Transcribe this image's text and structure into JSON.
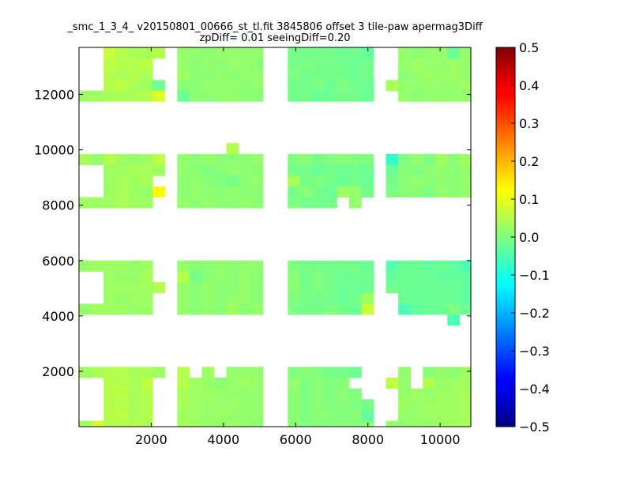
{
  "chart_data": {
    "type": "heatmap",
    "title_line1": "_smc_1_3_4_ v20150801_00666_st_tl.fit 3845806 offset 3 tile-paw apermag3Diff",
    "title_line2": "zpDiff= 0.01 seeingDiff=0.20",
    "xlabel": "",
    "ylabel": "",
    "xlim": [
      0,
      10850
    ],
    "ylim": [
      0,
      13700
    ],
    "x_ticks": [
      2000,
      4000,
      6000,
      8000,
      10000
    ],
    "x_tick_labels": [
      "2000",
      "4000",
      "6000",
      "8000",
      "10000"
    ],
    "y_ticks": [
      2000,
      4000,
      6000,
      8000,
      10000,
      12000
    ],
    "y_tick_labels": [
      "2000",
      "4000",
      "6000",
      "8000",
      "10000",
      "12000"
    ],
    "colorbar": {
      "colormap": "jet",
      "range": [
        -0.5,
        0.5
      ],
      "ticks": [
        0.5,
        0.4,
        0.3,
        0.2,
        0.1,
        0.0,
        -0.1,
        -0.2,
        -0.3,
        -0.4,
        -0.5
      ],
      "tick_labels": [
        "0.5",
        "0.4",
        "0.3",
        "0.2",
        "0.1",
        "0.0",
        "−0.1",
        "−0.2",
        "−0.3",
        "−0.4",
        "−0.5"
      ]
    },
    "grid": false,
    "cell_size": [
      340,
      390
    ],
    "column_x_starts": [
      0,
      340,
      680,
      1020,
      1360,
      1700,
      2040,
      2720,
      3060,
      3400,
      3740,
      4080,
      4420,
      4760,
      5780,
      6120,
      6460,
      6800,
      7140,
      7480,
      7820,
      8500,
      8840,
      9180,
      9520,
      9860,
      10200,
      10540
    ],
    "column_group_breaks": [
      7,
      14,
      21
    ],
    "rows": [
      {
        "y_start": 13300,
        "cells": [
          null,
          null,
          0.07,
          0.05,
          0.04,
          0.04,
          0.05,
          0.02,
          0.02,
          0.01,
          0.02,
          0.02,
          0.02,
          0.02,
          -0.01,
          -0.01,
          -0.01,
          -0.01,
          -0.02,
          -0.01,
          -0.03,
          null,
          0.02,
          0.01,
          0.02,
          0.02,
          -0.02,
          0.02
        ]
      },
      {
        "y_start": 12900,
        "cells": [
          null,
          null,
          0.06,
          0.05,
          0.05,
          0.06,
          null,
          0.02,
          0.01,
          0.02,
          0.01,
          0.02,
          0.02,
          0.01,
          -0.01,
          0.0,
          -0.01,
          -0.01,
          -0.01,
          -0.02,
          -0.01,
          null,
          0.02,
          0.03,
          0.02,
          0.02,
          0.03,
          0.02
        ]
      },
      {
        "y_start": 12520,
        "cells": [
          null,
          null,
          0.05,
          0.04,
          0.05,
          0.04,
          null,
          0.03,
          0.01,
          0.01,
          0.02,
          0.01,
          0.02,
          0.02,
          0.0,
          -0.01,
          -0.01,
          -0.01,
          -0.01,
          -0.02,
          -0.01,
          null,
          0.01,
          0.02,
          0.03,
          0.02,
          0.03,
          0.02
        ]
      },
      {
        "y_start": 12130,
        "cells": [
          null,
          null,
          0.05,
          0.06,
          0.04,
          0.03,
          -0.02,
          0.01,
          0.01,
          0.02,
          0.02,
          0.02,
          0.01,
          0.02,
          -0.01,
          -0.01,
          0.0,
          -0.02,
          0.0,
          -0.01,
          -0.02,
          0.04,
          0.02,
          0.02,
          0.02,
          0.02,
          0.02,
          0.03
        ]
      },
      {
        "y_start": 11750,
        "cells": [
          0.03,
          0.03,
          0.04,
          0.04,
          0.04,
          0.05,
          0.09,
          -0.02,
          0.01,
          0.01,
          0.02,
          0.02,
          0.01,
          0.01,
          -0.01,
          -0.01,
          -0.02,
          -0.02,
          -0.01,
          -0.01,
          -0.02,
          null,
          0.02,
          0.01,
          0.02,
          0.02,
          0.02,
          0.02
        ]
      },
      {
        "y_start": 9860,
        "cells": [
          null,
          null,
          null,
          null,
          null,
          null,
          null,
          null,
          null,
          null,
          null,
          0.05,
          null,
          null,
          null,
          null,
          null,
          null,
          null,
          null,
          null,
          null,
          null,
          null,
          null,
          null,
          null,
          null
        ]
      },
      {
        "y_start": 9460,
        "cells": [
          0.04,
          0.02,
          0.05,
          0.03,
          0.02,
          0.03,
          0.06,
          0.02,
          0.01,
          0.02,
          0.01,
          0.01,
          0.01,
          0.02,
          0.0,
          0.01,
          -0.01,
          0.0,
          0.01,
          0.0,
          0.0,
          -0.08,
          0.0,
          0.02,
          0.0,
          0.03,
          0.01,
          0.03
        ]
      },
      {
        "y_start": 9070,
        "cells": [
          null,
          null,
          0.03,
          0.03,
          0.04,
          0.04,
          0.03,
          0.02,
          0.01,
          0.0,
          0.01,
          0.02,
          0.01,
          0.01,
          -0.01,
          -0.01,
          -0.02,
          -0.01,
          -0.02,
          -0.01,
          -0.02,
          -0.02,
          0.01,
          0.0,
          0.01,
          0.02,
          0.01,
          0.02
        ]
      },
      {
        "y_start": 8680,
        "cells": [
          null,
          null,
          0.03,
          0.04,
          0.03,
          0.04,
          null,
          0.01,
          0.02,
          0.01,
          0.0,
          -0.01,
          0.01,
          0.02,
          0.04,
          -0.01,
          0.0,
          -0.01,
          -0.02,
          -0.01,
          -0.02,
          -0.01,
          0.01,
          0.02,
          0.01,
          0.01,
          0.01,
          0.02
        ]
      },
      {
        "y_start": 8290,
        "cells": [
          null,
          null,
          0.03,
          0.04,
          0.03,
          0.02,
          0.13,
          0.01,
          0.02,
          0.01,
          0.01,
          0.02,
          0.01,
          0.01,
          -0.01,
          0.01,
          -0.01,
          -0.02,
          0.03,
          0.02,
          -0.01,
          0.0,
          0.01,
          0.01,
          0.0,
          0.02,
          0.01,
          0.02
        ]
      },
      {
        "y_start": 7900,
        "cells": [
          0.03,
          0.03,
          0.03,
          0.04,
          0.03,
          0.03,
          null,
          0.02,
          0.01,
          0.02,
          0.01,
          0.01,
          0.02,
          0.01,
          0.0,
          -0.01,
          -0.01,
          -0.01,
          null,
          0.02,
          null,
          null,
          null,
          null,
          null,
          null,
          null,
          null
        ]
      },
      {
        "y_start": 5610,
        "cells": [
          0.02,
          0.03,
          0.03,
          0.03,
          0.02,
          0.03,
          null,
          0.02,
          0.01,
          0.01,
          0.02,
          0.01,
          0.02,
          0.02,
          0.0,
          -0.01,
          -0.01,
          -0.01,
          -0.01,
          -0.01,
          -0.02,
          -0.04,
          -0.02,
          -0.02,
          -0.03,
          -0.02,
          -0.03,
          -0.05
        ]
      },
      {
        "y_start": 5220,
        "cells": [
          null,
          null,
          0.03,
          0.02,
          0.02,
          0.04,
          null,
          0.05,
          -0.01,
          0.01,
          0.02,
          0.01,
          0.02,
          0.01,
          0.01,
          -0.01,
          0.0,
          -0.01,
          -0.02,
          -0.01,
          -0.02,
          -0.03,
          -0.02,
          -0.02,
          -0.02,
          -0.03,
          -0.03,
          -0.03
        ]
      },
      {
        "y_start": 4830,
        "cells": [
          null,
          null,
          0.03,
          0.03,
          0.03,
          0.03,
          0.05,
          0.02,
          0.01,
          0.02,
          0.01,
          0.01,
          0.02,
          0.01,
          0.01,
          -0.01,
          0.0,
          -0.01,
          -0.02,
          -0.02,
          -0.02,
          -0.01,
          -0.02,
          -0.02,
          -0.02,
          -0.02,
          -0.02,
          -0.03
        ]
      },
      {
        "y_start": 4440,
        "cells": [
          null,
          null,
          0.03,
          0.02,
          0.03,
          0.03,
          null,
          0.02,
          0.01,
          0.02,
          0.01,
          0.02,
          0.02,
          0.01,
          0.0,
          -0.01,
          -0.01,
          -0.01,
          -0.02,
          -0.01,
          0.03,
          null,
          -0.02,
          -0.02,
          -0.02,
          -0.02,
          -0.02,
          -0.03
        ]
      },
      {
        "y_start": 4050,
        "cells": [
          0.02,
          0.03,
          0.03,
          0.03,
          0.02,
          0.03,
          null,
          0.02,
          0.01,
          0.02,
          0.01,
          0.03,
          0.01,
          0.02,
          0.0,
          -0.01,
          -0.01,
          0.0,
          -0.01,
          -0.02,
          0.07,
          null,
          -0.05,
          -0.03,
          -0.02,
          -0.02,
          0.0,
          -0.02
        ]
      },
      {
        "y_start": 3660,
        "cells": [
          null,
          null,
          null,
          null,
          null,
          null,
          null,
          null,
          null,
          null,
          null,
          null,
          null,
          null,
          null,
          null,
          null,
          null,
          null,
          null,
          null,
          null,
          null,
          null,
          null,
          null,
          -0.05,
          null
        ]
      },
      {
        "y_start": 1770,
        "cells": [
          0.03,
          0.04,
          0.05,
          0.05,
          0.04,
          0.04,
          0.03,
          0.05,
          null,
          0.03,
          null,
          0.02,
          0.02,
          0.02,
          0.0,
          0.01,
          0.0,
          -0.01,
          -0.01,
          -0.02,
          null,
          null,
          0.02,
          null,
          0.01,
          0.02,
          0.01,
          0.03
        ]
      },
      {
        "y_start": 1380,
        "cells": [
          null,
          null,
          0.05,
          0.05,
          0.04,
          0.06,
          null,
          0.05,
          0.03,
          0.02,
          0.01,
          0.02,
          0.03,
          0.02,
          0.02,
          0.0,
          0.01,
          0.0,
          0.01,
          null,
          null,
          0.06,
          0.02,
          null,
          0.05,
          0.02,
          0.03,
          0.03
        ]
      },
      {
        "y_start": 990,
        "cells": [
          null,
          null,
          0.05,
          0.06,
          0.04,
          0.05,
          null,
          0.04,
          0.03,
          0.03,
          0.02,
          0.02,
          0.02,
          0.02,
          0.01,
          0.0,
          0.01,
          0.0,
          0.01,
          0.0,
          null,
          null,
          0.02,
          0.03,
          0.02,
          0.03,
          0.03,
          0.04
        ]
      },
      {
        "y_start": 600,
        "cells": [
          null,
          null,
          0.05,
          0.05,
          0.04,
          0.05,
          null,
          0.04,
          0.03,
          0.02,
          0.02,
          0.03,
          0.02,
          0.02,
          0.01,
          0.0,
          0.01,
          0.0,
          0.01,
          0.0,
          -0.01,
          null,
          0.03,
          0.02,
          0.03,
          0.03,
          0.03,
          0.04
        ]
      },
      {
        "y_start": 210,
        "cells": [
          null,
          null,
          0.05,
          0.06,
          0.04,
          0.05,
          null,
          0.03,
          0.03,
          0.02,
          0.03,
          0.02,
          0.02,
          0.02,
          0.01,
          0.0,
          0.01,
          0.01,
          0.0,
          0.01,
          -0.03,
          null,
          0.02,
          0.02,
          0.03,
          0.03,
          0.03,
          0.04
        ]
      },
      {
        "y_start": -180,
        "cells": [
          0.03,
          0.08,
          0.05,
          0.05,
          0.05,
          0.04,
          null,
          0.04,
          0.03,
          0.02,
          0.02,
          0.03,
          0.02,
          0.01,
          0.01,
          0.0,
          0.01,
          0.0,
          0.01,
          0.0,
          0.01,
          0.02,
          0.02,
          0.02,
          0.02,
          0.03,
          0.03,
          0.04
        ]
      }
    ]
  }
}
